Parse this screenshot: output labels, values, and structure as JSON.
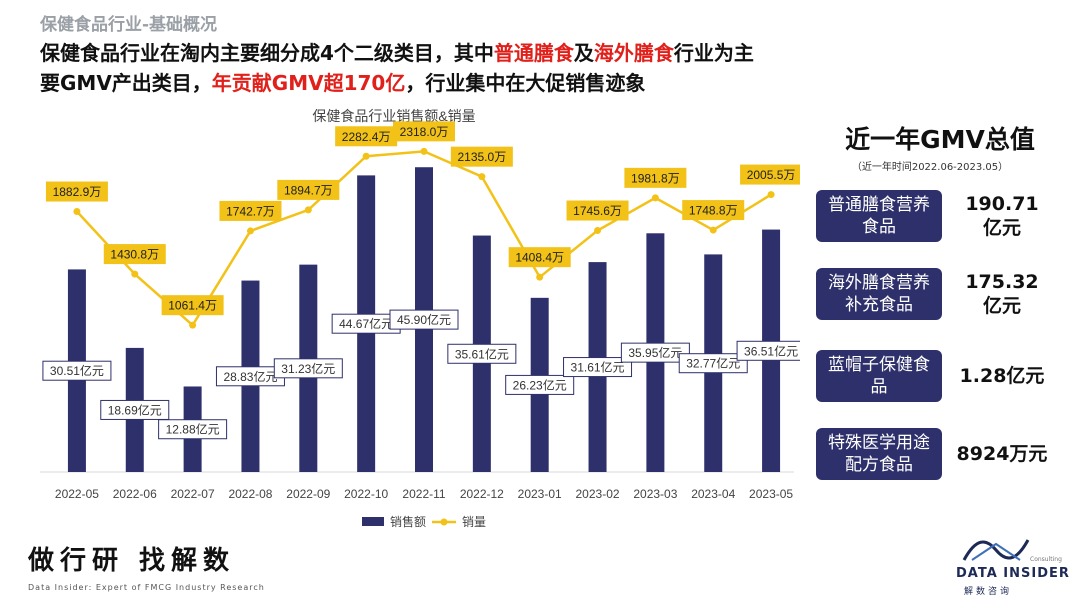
{
  "header": {
    "section_title": "保健食品行业-基础概况",
    "headline_parts": [
      {
        "text": "保健食品行业在淘内主要细分成4个二级类目，其中",
        "red": false
      },
      {
        "text": "普通膳食",
        "red": true
      },
      {
        "text": "及",
        "red": false
      },
      {
        "text": "海外膳食",
        "red": true
      },
      {
        "text": "行业为主要GMV产出类目，",
        "red": false
      },
      {
        "text": "年贡献GMV超170亿",
        "red": true
      },
      {
        "text": "，行业集中在大促销售迹象",
        "red": false
      }
    ]
  },
  "chart_data": {
    "type": "bar",
    "title": "保健食品行业销售额&销量",
    "categories": [
      "2022-05",
      "2022-06",
      "2022-07",
      "2022-08",
      "2022-09",
      "2022-10",
      "2022-11",
      "2022-12",
      "2023-01",
      "2023-02",
      "2023-03",
      "2023-04",
      "2023-05"
    ],
    "series": [
      {
        "name": "销售额",
        "type": "bar",
        "color": "#2e306b",
        "values": [
          30.51,
          18.69,
          12.88,
          28.83,
          31.23,
          44.67,
          45.9,
          35.61,
          26.23,
          31.61,
          35.95,
          32.77,
          36.51
        ],
        "labels": [
          "30.51亿元",
          "18.69亿元",
          "12.88亿元",
          "28.83亿元",
          "31.23亿元",
          "44.67亿元",
          "45.90亿元",
          "35.61亿元",
          "26.23亿元",
          "31.61亿元",
          "35.95亿元",
          "32.77亿元",
          "36.51亿元"
        ]
      },
      {
        "name": "销量",
        "type": "line",
        "color": "#f2c218",
        "values": [
          1882.9,
          1430.8,
          1061.4,
          1742.7,
          1894.7,
          2282.4,
          2318.0,
          2135.0,
          1408.4,
          1745.6,
          1981.8,
          1748.8,
          2005.5
        ],
        "labels": [
          "1882.9万",
          "1430.8万",
          "1061.4万",
          "1742.7万",
          "1894.7万",
          "2282.4万",
          "2318.0万",
          "2135.0万",
          "1408.4万",
          "1745.6万",
          "1981.8万",
          "1748.8万",
          "2005.5万"
        ]
      }
    ],
    "bar_ylim": [
      0,
      50
    ],
    "line_ylim": [
      0,
      2400
    ],
    "legend_position": "bottom",
    "grid": false
  },
  "gmv_panel": {
    "title": "近一年GMV总值",
    "subtitle": "（近一年时间2022.06-2023.05）",
    "rows": [
      {
        "category": "普通膳食营养食品",
        "value": "190.71亿元"
      },
      {
        "category": "海外膳食营养补充食品",
        "value": "175.32亿元"
      },
      {
        "category": "蓝帽子保健食品",
        "value": "1.28亿元"
      },
      {
        "category": "特殊医学用途配方食品",
        "value": "8924万元"
      }
    ],
    "box_color": "#2e306b"
  },
  "footer": {
    "slogan": "做行研 找解数",
    "tagline": "Data Insider: Expert of FMCG Industry Research",
    "logo_text": "DATA INSIDER",
    "logo_cn": "解数咨询",
    "logo_consulting": "Consulting"
  }
}
